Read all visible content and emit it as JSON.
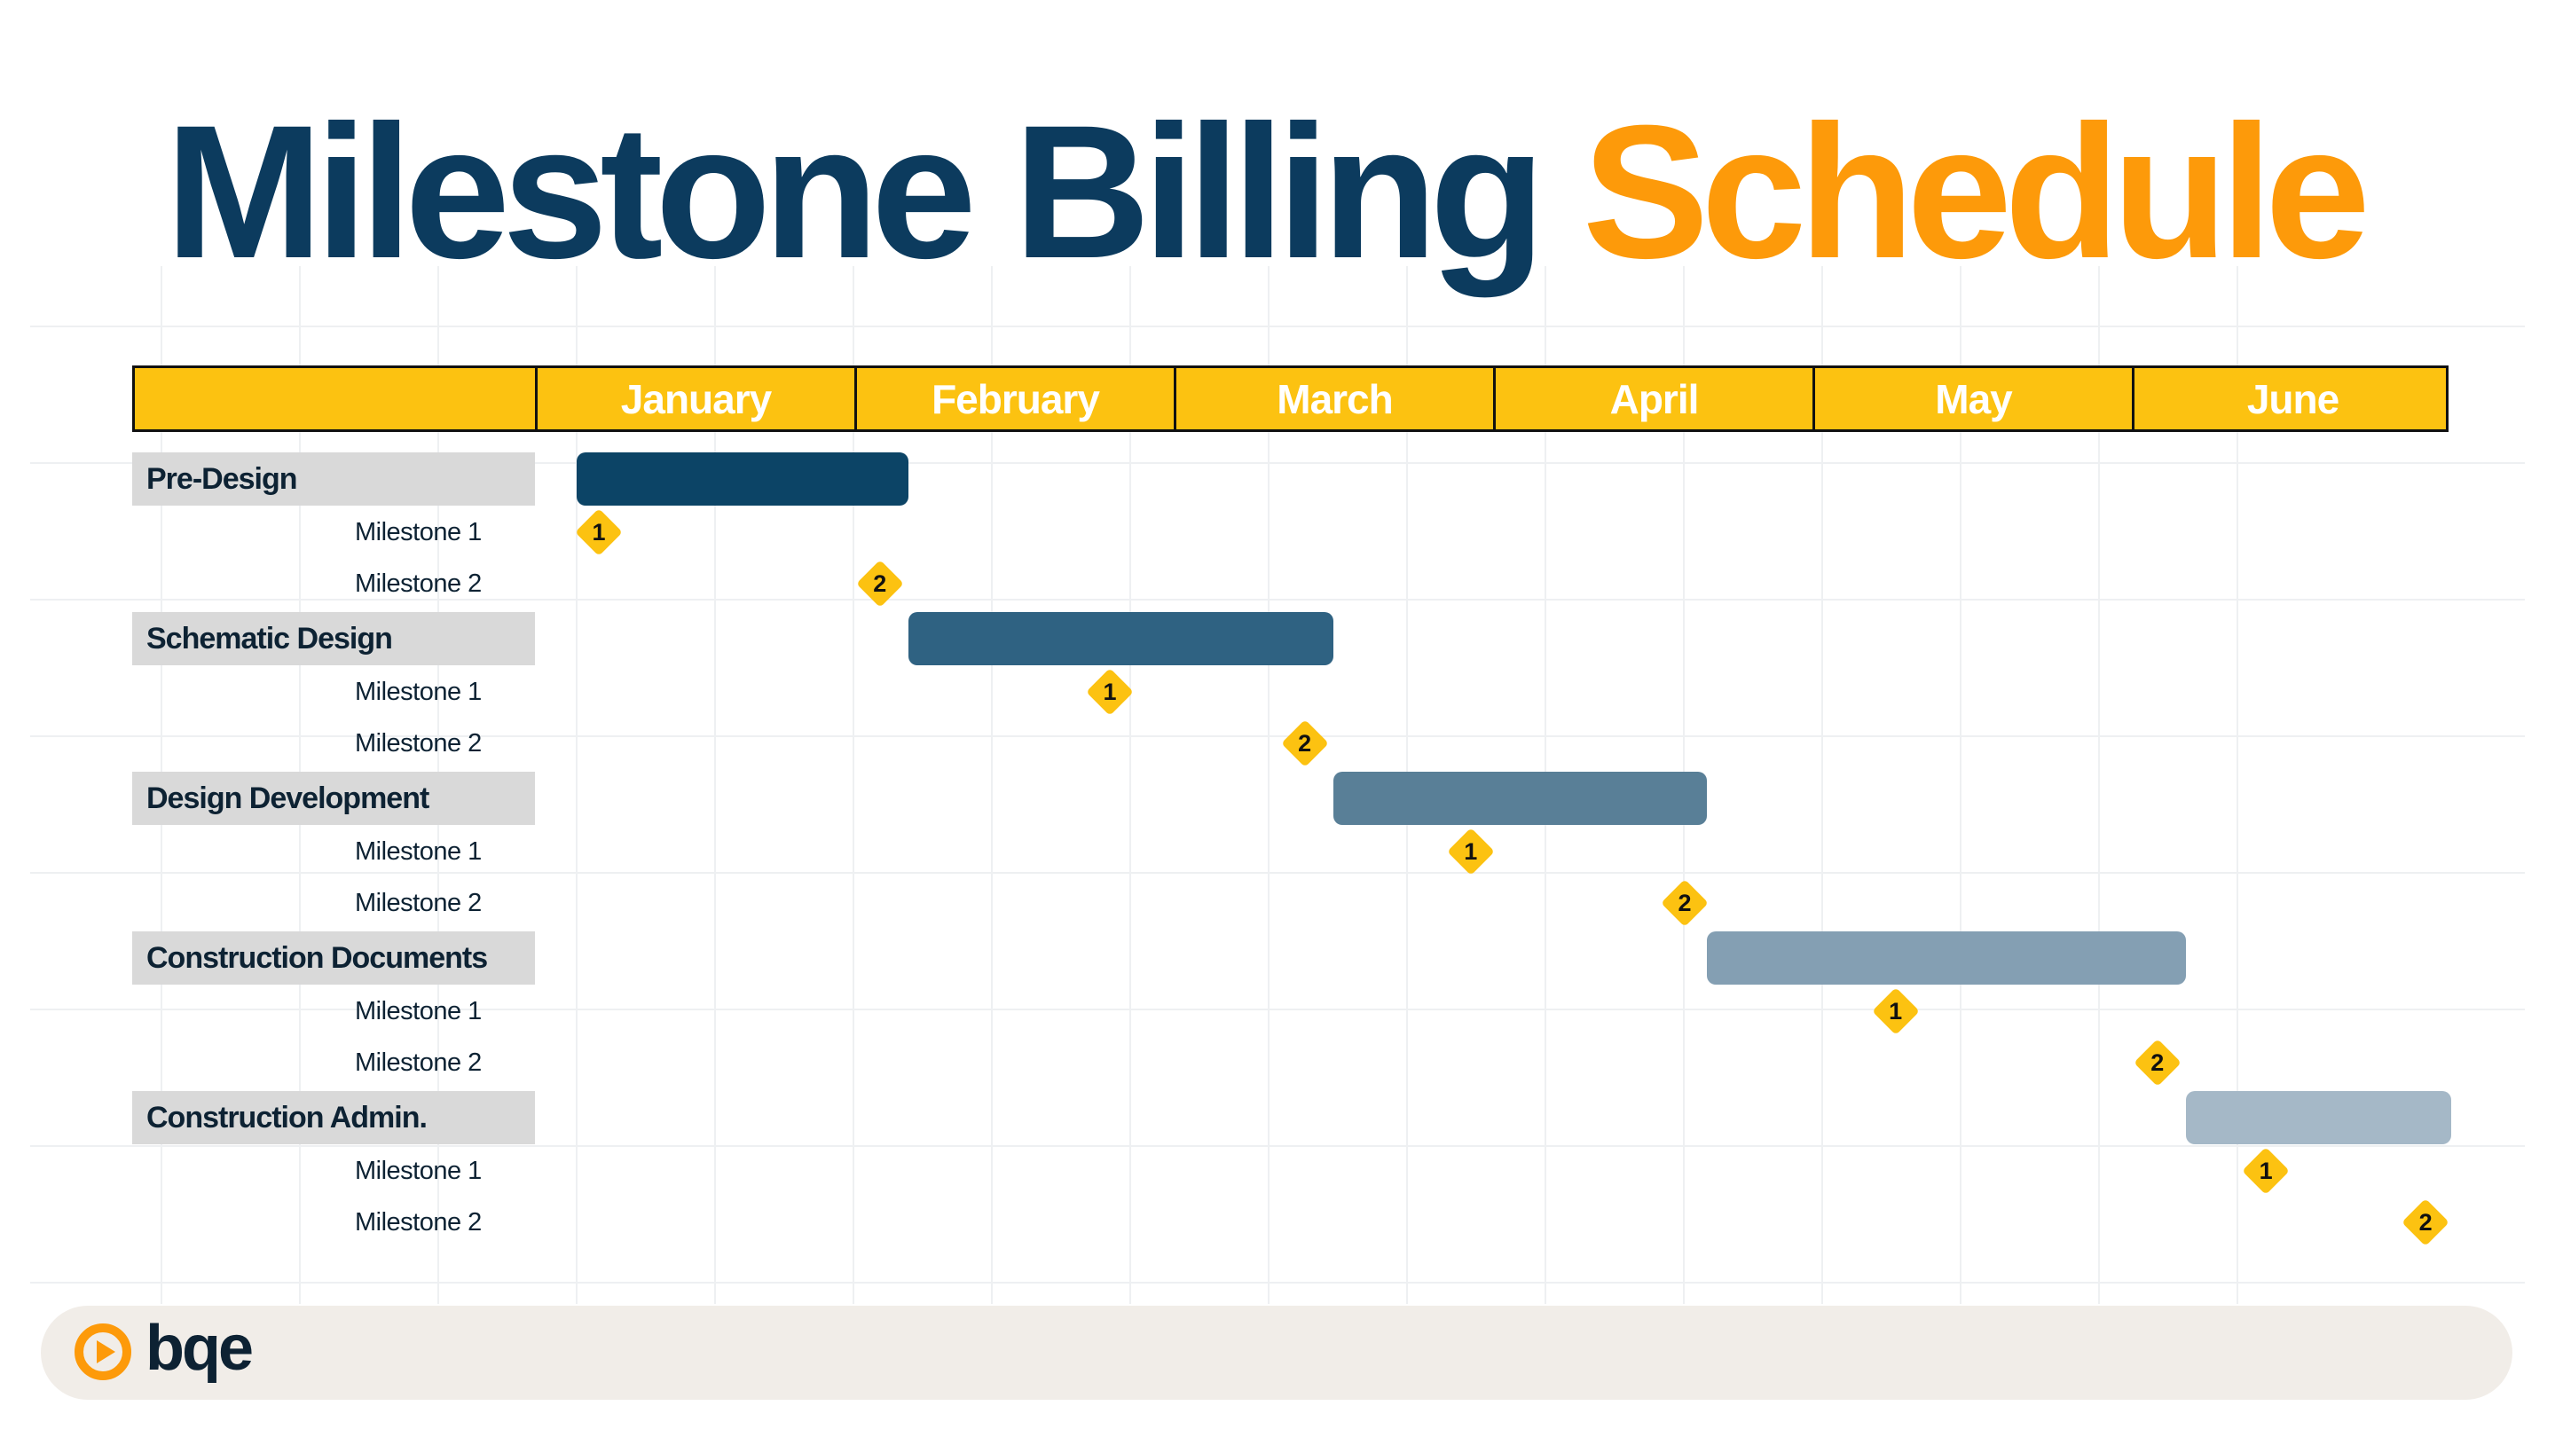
{
  "title": {
    "main": "Milestone Billing",
    "accent": "Schedule"
  },
  "months": [
    "January",
    "February",
    "March",
    "April",
    "May",
    "June"
  ],
  "phases": [
    {
      "name": "Pre-Design",
      "bar_start": 0.13,
      "bar_end": 1.17,
      "bar_color": "#0c4466",
      "milestones": [
        {
          "label": "Milestone 1",
          "number": "1",
          "position": 0.2
        },
        {
          "label": "Milestone 2",
          "number": "2",
          "position": 1.08
        }
      ]
    },
    {
      "name": "Schematic Design",
      "bar_start": 1.17,
      "bar_end": 2.5,
      "bar_color": "#2f6282",
      "milestones": [
        {
          "label": "Milestone 1",
          "number": "1",
          "position": 1.8
        },
        {
          "label": "Milestone 2",
          "number": "2",
          "position": 2.41
        }
      ]
    },
    {
      "name": "Design Development",
      "bar_start": 2.5,
      "bar_end": 3.67,
      "bar_color": "#597f97",
      "milestones": [
        {
          "label": "Milestone 1",
          "number": "1",
          "position": 2.93
        },
        {
          "label": "Milestone 2",
          "number": "2",
          "position": 3.6
        }
      ]
    },
    {
      "name": "Construction Documents",
      "bar_start": 3.67,
      "bar_end": 5.17,
      "bar_color": "#849fb3",
      "milestones": [
        {
          "label": "Milestone 1",
          "number": "1",
          "position": 4.26
        },
        {
          "label": "Milestone 2",
          "number": "2",
          "position": 5.08
        }
      ]
    },
    {
      "name": "Construction Admin.",
      "bar_start": 5.17,
      "bar_end": 6.0,
      "bar_color": "#a5b8c7",
      "milestones": [
        {
          "label": "Milestone 1",
          "number": "1",
          "position": 5.42
        },
        {
          "label": "Milestone 2",
          "number": "2",
          "position": 5.92
        }
      ]
    }
  ],
  "colors": {
    "navy": "#0c3b5e",
    "orange": "#fd9a0a",
    "gold": "#fcc211"
  },
  "footer": {
    "logo_text": "bqe",
    "logo_icon": "play-circle-icon"
  }
}
